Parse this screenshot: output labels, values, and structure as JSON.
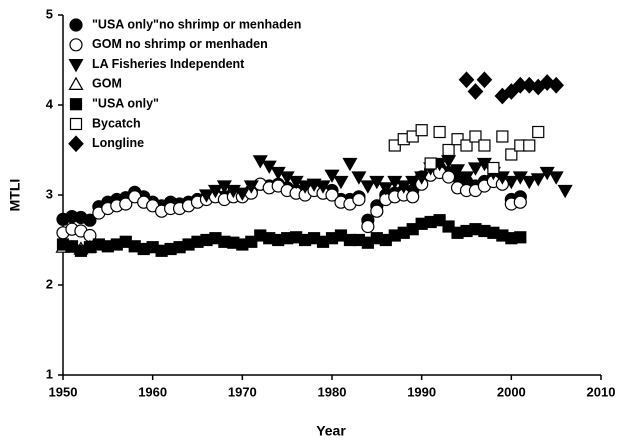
{
  "chart_data": {
    "type": "scatter",
    "xlabel": "Year",
    "ylabel": "MTLI",
    "xlim": [
      1950,
      2010
    ],
    "ylim": [
      1,
      5
    ],
    "xticks": [
      1950,
      1960,
      1970,
      1980,
      1990,
      2000,
      2010
    ],
    "yticks": [
      1,
      2,
      3,
      4,
      5
    ],
    "legend": "upper left",
    "series": [
      {
        "name": "\"USA only\"no shrimp or menhaden",
        "color": "#000000",
        "marker": "circle",
        "filled": true,
        "x": [
          1950,
          1951,
          1952,
          1953,
          1954,
          1955,
          1956,
          1957,
          1958,
          1959,
          1960,
          1961,
          1962,
          1963,
          1964,
          1965,
          1966,
          1967,
          1968,
          1969,
          1970,
          1971,
          1972,
          1973,
          1974,
          1975,
          1976,
          1977,
          1978,
          1979,
          1980,
          1981,
          1982,
          1983,
          1984,
          1985,
          1986,
          1987,
          1988,
          1989,
          1990,
          1991,
          1992,
          1993,
          1994,
          1995,
          1996,
          1997,
          1998,
          1999,
          2000,
          2001
        ],
        "values": [
          2.73,
          2.76,
          2.75,
          2.72,
          2.87,
          2.92,
          2.95,
          2.97,
          3.03,
          2.98,
          2.92,
          2.88,
          2.92,
          2.9,
          2.92,
          2.95,
          2.97,
          3.0,
          2.98,
          3.02,
          3.0,
          3.05,
          3.12,
          3.1,
          3.12,
          3.08,
          3.05,
          3.05,
          3.08,
          3.05,
          3.05,
          2.95,
          2.95,
          2.98,
          2.72,
          2.88,
          3.0,
          3.02,
          3.05,
          3.05,
          3.2,
          3.28,
          3.3,
          3.25,
          3.2,
          3.15,
          3.1,
          3.15,
          3.2,
          3.15,
          2.95,
          2.98
        ]
      },
      {
        "name": "GOM no shrimp or menhaden",
        "color": "#000000",
        "marker": "circle",
        "filled": false,
        "x": [
          1950,
          1951,
          1952,
          1953,
          1954,
          1955,
          1956,
          1957,
          1958,
          1959,
          1960,
          1961,
          1962,
          1963,
          1964,
          1965,
          1966,
          1967,
          1968,
          1969,
          1970,
          1971,
          1972,
          1973,
          1974,
          1975,
          1976,
          1977,
          1978,
          1979,
          1980,
          1981,
          1982,
          1983,
          1984,
          1985,
          1986,
          1987,
          1988,
          1989,
          1990,
          1991,
          1992,
          1993,
          1994,
          1995,
          1996,
          1997,
          1998,
          1999,
          2000,
          2001
        ],
        "values": [
          2.58,
          2.62,
          2.6,
          2.55,
          2.8,
          2.85,
          2.88,
          2.9,
          2.98,
          2.92,
          2.88,
          2.82,
          2.85,
          2.85,
          2.88,
          2.92,
          2.95,
          2.98,
          2.95,
          2.98,
          2.98,
          3.02,
          3.12,
          3.08,
          3.1,
          3.05,
          3.02,
          3.0,
          3.05,
          3.02,
          3.0,
          2.92,
          2.9,
          2.95,
          2.65,
          2.82,
          2.95,
          2.98,
          3.0,
          2.98,
          3.12,
          3.22,
          3.25,
          3.2,
          3.08,
          3.05,
          3.05,
          3.1,
          3.15,
          3.12,
          2.9,
          2.92
        ]
      },
      {
        "name": "LA Fisheries Independent",
        "color": "#000000",
        "marker": "triangle-down",
        "filled": true,
        "x": [
          1966,
          1967,
          1968,
          1969,
          1970,
          1971,
          1972,
          1973,
          1974,
          1975,
          1976,
          1977,
          1978,
          1979,
          1980,
          1981,
          1982,
          1983,
          1984,
          1985,
          1986,
          1987,
          1988,
          1989,
          1990,
          1991,
          1992,
          1993,
          1994,
          1995,
          1996,
          1997,
          1998,
          1999,
          2000,
          2001,
          2002,
          2003,
          2004,
          2005,
          2006
        ],
        "values": [
          3.0,
          3.05,
          3.1,
          3.05,
          3.02,
          3.1,
          3.38,
          3.32,
          3.25,
          3.2,
          3.15,
          3.1,
          3.12,
          3.1,
          3.22,
          3.15,
          3.35,
          3.2,
          3.1,
          3.15,
          3.08,
          3.15,
          3.1,
          3.15,
          3.2,
          3.3,
          3.35,
          3.38,
          3.28,
          3.2,
          3.3,
          3.35,
          3.25,
          3.2,
          3.15,
          3.2,
          3.15,
          3.18,
          3.25,
          3.2,
          3.05
        ]
      },
      {
        "name": "GOM",
        "color": "#000000",
        "marker": "triangle-up",
        "filled": false,
        "x": [
          1950,
          1951,
          1952,
          1953
        ],
        "values": [
          2.42,
          2.42,
          2.4,
          2.42
        ]
      },
      {
        "name": "\"USA only\"",
        "color": "#000000",
        "marker": "square",
        "filled": true,
        "x": [
          1950,
          1951,
          1952,
          1953,
          1954,
          1955,
          1956,
          1957,
          1958,
          1959,
          1960,
          1961,
          1962,
          1963,
          1964,
          1965,
          1966,
          1967,
          1968,
          1969,
          1970,
          1971,
          1972,
          1973,
          1974,
          1975,
          1976,
          1977,
          1978,
          1979,
          1980,
          1981,
          1982,
          1983,
          1984,
          1985,
          1986,
          1987,
          1988,
          1989,
          1990,
          1991,
          1992,
          1993,
          1994,
          1995,
          1996,
          1997,
          1998,
          1999,
          2000,
          2001
        ],
        "values": [
          2.45,
          2.43,
          2.38,
          2.42,
          2.45,
          2.43,
          2.45,
          2.48,
          2.43,
          2.4,
          2.42,
          2.38,
          2.4,
          2.42,
          2.45,
          2.48,
          2.5,
          2.52,
          2.48,
          2.47,
          2.45,
          2.48,
          2.55,
          2.52,
          2.5,
          2.52,
          2.53,
          2.5,
          2.52,
          2.48,
          2.52,
          2.55,
          2.5,
          2.5,
          2.47,
          2.52,
          2.5,
          2.55,
          2.58,
          2.62,
          2.68,
          2.7,
          2.72,
          2.65,
          2.58,
          2.6,
          2.62,
          2.6,
          2.58,
          2.55,
          2.52,
          2.53
        ]
      },
      {
        "name": "Bycatch",
        "color": "#000000",
        "marker": "square",
        "filled": false,
        "x": [
          1987,
          1988,
          1989,
          1990,
          1991,
          1992,
          1993,
          1994,
          1995,
          1996,
          1997,
          1998,
          1999,
          2000,
          2001,
          2002,
          2003
        ],
        "values": [
          3.55,
          3.62,
          3.65,
          3.72,
          3.35,
          3.7,
          3.5,
          3.62,
          3.55,
          3.65,
          3.55,
          3.3,
          3.65,
          3.45,
          3.55,
          3.55,
          3.7
        ]
      },
      {
        "name": "Longline",
        "color": "#000000",
        "marker": "diamond",
        "filled": true,
        "x": [
          1995,
          1996,
          1997,
          1999,
          2000,
          2001,
          2002,
          2003,
          2004,
          2005
        ],
        "values": [
          4.28,
          4.15,
          4.28,
          4.1,
          4.15,
          4.22,
          4.22,
          4.2,
          4.25,
          4.22
        ]
      }
    ]
  }
}
